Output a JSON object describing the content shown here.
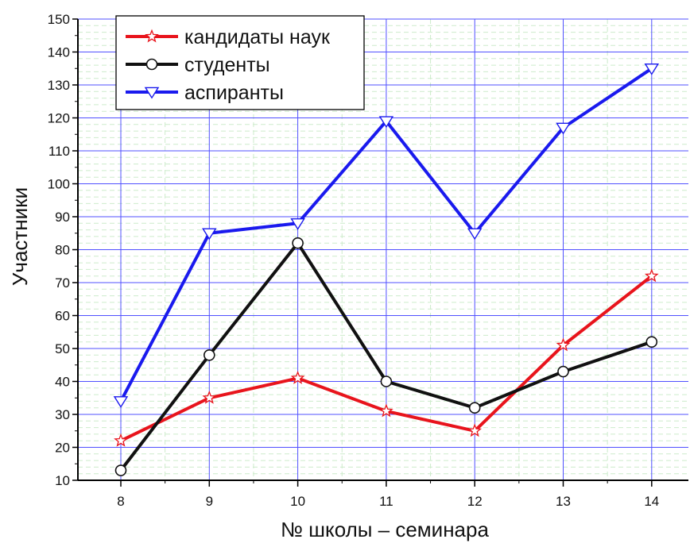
{
  "chart_data": {
    "type": "line",
    "xlabel": "№ школы – семинара",
    "ylabel": "Участники",
    "x": [
      8,
      9,
      10,
      11,
      12,
      13,
      14
    ],
    "xlim": [
      7.5,
      14.4
    ],
    "ylim": [
      10,
      150
    ],
    "yticks": [
      10,
      20,
      30,
      40,
      50,
      60,
      70,
      80,
      90,
      100,
      110,
      120,
      130,
      140,
      150
    ],
    "grid": true,
    "legend_position": "top-left",
    "series": [
      {
        "name": "кандидаты наук",
        "color": "#e8141c",
        "marker": "star",
        "values": [
          22,
          35,
          41,
          31,
          25,
          51,
          72
        ]
      },
      {
        "name": "студенты",
        "color": "#111111",
        "marker": "circle",
        "values": [
          13,
          48,
          82,
          40,
          32,
          43,
          52
        ]
      },
      {
        "name": "аспиранты",
        "color": "#1a1aee",
        "marker": "triangle-down",
        "values": [
          34,
          85,
          88,
          119,
          85,
          117,
          135
        ]
      }
    ]
  }
}
